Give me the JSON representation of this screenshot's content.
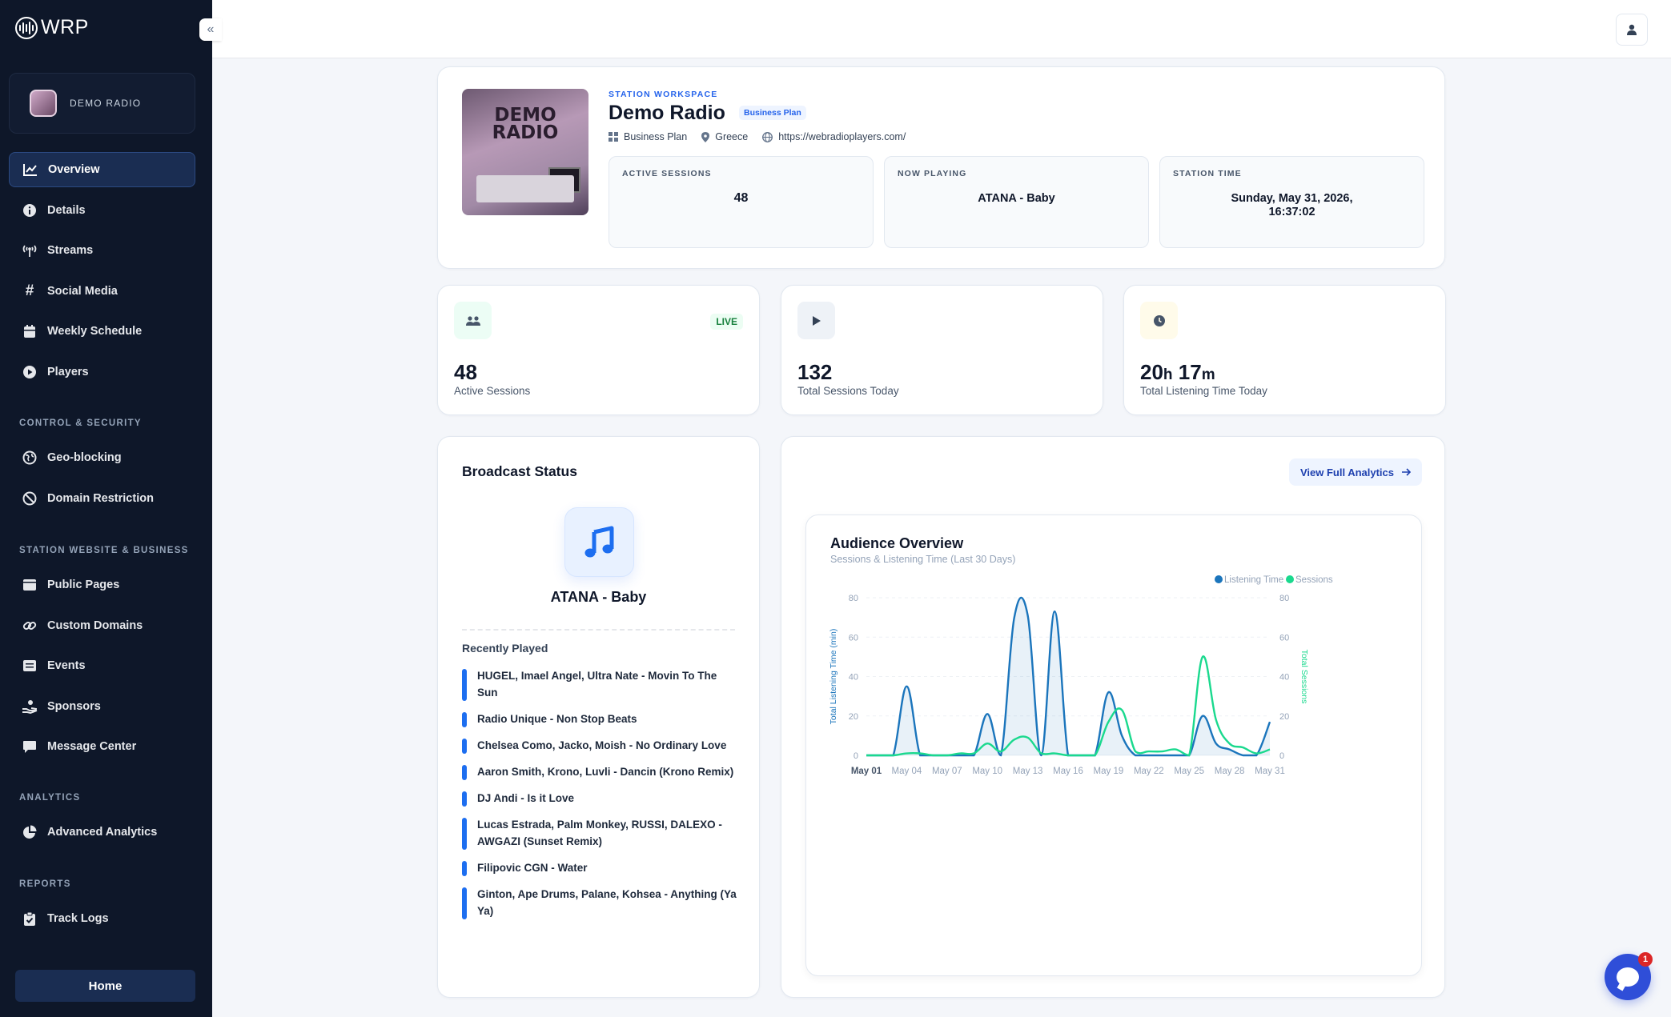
{
  "app": {
    "logo_text": "WRP"
  },
  "sidebar": {
    "station_name": "DEMO RADIO",
    "main_items": [
      {
        "label": "Overview",
        "icon": "chart-line-icon",
        "active": true
      },
      {
        "label": "Details",
        "icon": "info-icon"
      },
      {
        "label": "Streams",
        "icon": "broadcast-tower-icon"
      },
      {
        "label": "Social Media",
        "icon": "hashtag-icon"
      },
      {
        "label": "Weekly Schedule",
        "icon": "calendar-icon"
      },
      {
        "label": "Players",
        "icon": "play-circle-icon"
      }
    ],
    "section_control": "CONTROL & SECURITY",
    "control_items": [
      {
        "label": "Geo-blocking",
        "icon": "globe-icon"
      },
      {
        "label": "Domain Restriction",
        "icon": "ban-icon"
      }
    ],
    "section_website": "STATION WEBSITE & BUSINESS",
    "website_items": [
      {
        "label": "Public Pages",
        "icon": "window-icon"
      },
      {
        "label": "Custom Domains",
        "icon": "link-icon"
      },
      {
        "label": "Events",
        "icon": "list-icon"
      },
      {
        "label": "Sponsors",
        "icon": "hand-holding-icon"
      },
      {
        "label": "Message Center",
        "icon": "message-icon"
      }
    ],
    "section_analytics": "ANALYTICS",
    "analytics_items": [
      {
        "label": "Advanced Analytics",
        "icon": "pie-chart-icon"
      }
    ],
    "section_reports": "REPORTS",
    "reports_items": [
      {
        "label": "Track Logs",
        "icon": "clipboard-check-icon"
      }
    ],
    "home_label": "Home"
  },
  "station": {
    "workspace_label": "STATION WORKSPACE",
    "title": "Demo Radio",
    "plan_badge": "Business Plan",
    "plan": "Business Plan",
    "country": "Greece",
    "website": "https://webradioplayers.com/",
    "cover_text": "DEMO RADIO",
    "active_sessions_label": "ACTIVE SESSIONS",
    "active_sessions": "48",
    "now_playing_label": "NOW PLAYING",
    "now_playing": "ATANA - Baby",
    "station_time_label": "STATION TIME",
    "station_time_date": "Sunday, May 31, 2026,",
    "station_time_clock": "16:37:02"
  },
  "stats": {
    "active": {
      "value": "48",
      "label": "Active Sessions",
      "badge": "LIVE"
    },
    "today": {
      "value": "132",
      "label": "Total Sessions Today"
    },
    "listening": {
      "hours": "20",
      "h_unit": "h",
      "minutes": "17",
      "m_unit": "m",
      "label": "Total Listening Time Today"
    }
  },
  "broadcast": {
    "title": "Broadcast Status",
    "now_playing": "ATANA - Baby",
    "recently_played_label": "Recently Played",
    "tracks": [
      "HUGEL, Imael Angel, Ultra Nate - Movin To The Sun",
      "Radio Unique - Non Stop Beats",
      "Chelsea Como, Jacko, Moish - No Ordinary Love",
      "Aaron Smith, Krono, Luvli - Dancin (Krono Remix)",
      "DJ Andi - Is it Love",
      "Lucas Estrada, Palm Monkey, RUSSI, DALEXO - AWGAZI (Sunset Remix)",
      "Filipovic CGN - Water",
      "Ginton, Ape Drums, Palane, Kohsea - Anything (Ya Ya)"
    ]
  },
  "analytics": {
    "view_full_label": "View Full Analytics"
  },
  "chart_data": {
    "type": "line",
    "title": "Audience Overview",
    "subtitle": "Sessions & Listening Time (Last 30 Days)",
    "x": [
      "May 01",
      "May 02",
      "May 03",
      "May 04",
      "May 05",
      "May 06",
      "May 07",
      "May 08",
      "May 09",
      "May 10",
      "May 11",
      "May 12",
      "May 13",
      "May 14",
      "May 15",
      "May 16",
      "May 17",
      "May 18",
      "May 19",
      "May 20",
      "May 21",
      "May 22",
      "May 23",
      "May 24",
      "May 25",
      "May 26",
      "May 27",
      "May 28",
      "May 29",
      "May 30",
      "May 31"
    ],
    "tick_labels": [
      "May 01",
      "May 04",
      "May 07",
      "May 10",
      "May 13",
      "May 16",
      "May 19",
      "May 22",
      "May 25",
      "May 28",
      "May 31"
    ],
    "series": [
      {
        "name": "Listening Time",
        "axis": "left",
        "color": "#1b75bc",
        "values": [
          0,
          0,
          0,
          35,
          0,
          0,
          0,
          0,
          0,
          21,
          0,
          70,
          71,
          0,
          73,
          0,
          0,
          0,
          32,
          10,
          0,
          0,
          0,
          0,
          0,
          20,
          6,
          3,
          0,
          0,
          17
        ]
      },
      {
        "name": "Sessions",
        "axis": "right",
        "color": "#1ad98e",
        "values": [
          0,
          0,
          0,
          1,
          1,
          0,
          0,
          1,
          1,
          6,
          2,
          8,
          9,
          1,
          1,
          0,
          0,
          0,
          17,
          23,
          2,
          2,
          2,
          3,
          0,
          50,
          18,
          6,
          4,
          1,
          3
        ]
      }
    ],
    "ylabel_left": "Total Listening Time (min)",
    "ylabel_right": "Total Sessions",
    "ylim": [
      0,
      80
    ],
    "yticks": [
      0,
      20,
      40,
      60,
      80
    ],
    "legend_position": "top-right",
    "grid": true
  }
}
